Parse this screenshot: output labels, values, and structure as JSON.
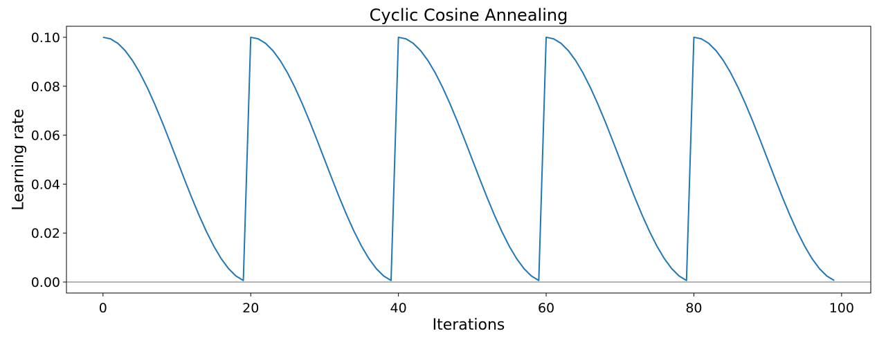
{
  "chart_data": {
    "type": "line",
    "title": "Cyclic Cosine Annealing",
    "xlabel": "Iterations",
    "ylabel": "Learning rate",
    "xlim": [
      -4.95,
      103.95
    ],
    "ylim": [
      -0.0045,
      0.1045
    ],
    "xticks": [
      0,
      20,
      40,
      60,
      80,
      100
    ],
    "xtick_labels": [
      "0",
      "20",
      "40",
      "60",
      "80",
      "100"
    ],
    "yticks": [
      0.0,
      0.02,
      0.04,
      0.06,
      0.08,
      0.1
    ],
    "ytick_labels": [
      "0.00",
      "0.02",
      "0.04",
      "0.06",
      "0.08",
      "0.10"
    ],
    "grid": false,
    "reference_line": {
      "y": 0.0,
      "color": "#555555"
    },
    "series": [
      {
        "color": "#1f77b4",
        "x": [
          0,
          1,
          2,
          3,
          4,
          5,
          6,
          7,
          8,
          9,
          10,
          11,
          12,
          13,
          14,
          15,
          16,
          17,
          18,
          19,
          20,
          21,
          22,
          23,
          24,
          25,
          26,
          27,
          28,
          29,
          30,
          31,
          32,
          33,
          34,
          35,
          36,
          37,
          38,
          39,
          40,
          41,
          42,
          43,
          44,
          45,
          46,
          47,
          48,
          49,
          50,
          51,
          52,
          53,
          54,
          55,
          56,
          57,
          58,
          59,
          60,
          61,
          62,
          63,
          64,
          65,
          66,
          67,
          68,
          69,
          70,
          71,
          72,
          73,
          74,
          75,
          76,
          77,
          78,
          79,
          80,
          81,
          82,
          83,
          84,
          85,
          86,
          87,
          88,
          89,
          90,
          91,
          92,
          93,
          94,
          95,
          96,
          97,
          98,
          99
        ],
        "y": [
          0.1,
          0.09938,
          0.09755,
          0.09455,
          0.09045,
          0.08536,
          0.07939,
          0.0727,
          0.06545,
          0.05782,
          0.05,
          0.04218,
          0.03455,
          0.0273,
          0.02061,
          0.01464,
          0.00955,
          0.00545,
          0.00245,
          0.00062,
          0.1,
          0.09938,
          0.09755,
          0.09455,
          0.09045,
          0.08536,
          0.07939,
          0.0727,
          0.06545,
          0.05782,
          0.05,
          0.04218,
          0.03455,
          0.0273,
          0.02061,
          0.01464,
          0.00955,
          0.00545,
          0.00245,
          0.00062,
          0.1,
          0.09938,
          0.09755,
          0.09455,
          0.09045,
          0.08536,
          0.07939,
          0.0727,
          0.06545,
          0.05782,
          0.05,
          0.04218,
          0.03455,
          0.0273,
          0.02061,
          0.01464,
          0.00955,
          0.00545,
          0.00245,
          0.00062,
          0.1,
          0.09938,
          0.09755,
          0.09455,
          0.09045,
          0.08536,
          0.07939,
          0.0727,
          0.06545,
          0.05782,
          0.05,
          0.04218,
          0.03455,
          0.0273,
          0.02061,
          0.01464,
          0.00955,
          0.00545,
          0.00245,
          0.00062,
          0.1,
          0.09938,
          0.09755,
          0.09455,
          0.09045,
          0.08536,
          0.07939,
          0.0727,
          0.06545,
          0.05782,
          0.05,
          0.04218,
          0.03455,
          0.0273,
          0.02061,
          0.01464,
          0.00955,
          0.00545,
          0.00245,
          0.00062
        ]
      }
    ]
  }
}
